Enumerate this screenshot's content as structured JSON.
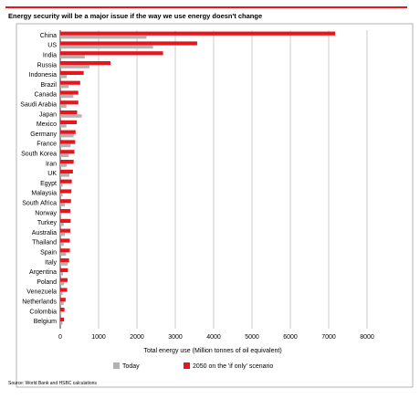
{
  "colors": {
    "title_bar": "#e8151c",
    "bar_2050": "#e8151c",
    "bar_today": "#b2b2b2",
    "grid": "#9a9a9a",
    "frame": "#808080"
  },
  "chart_data": {
    "type": "bar",
    "orientation": "horizontal",
    "title": "Energy security will be a major issue if the way we use energy doesn't change",
    "xlabel": "Total energy use (Million tonnes of oil equivalent)",
    "ylabel": "",
    "xlim": [
      0,
      8000
    ],
    "xticks": [
      0,
      1000,
      2000,
      3000,
      4000,
      5000,
      6000,
      7000,
      8000
    ],
    "grid": "vertical",
    "legend_position": "bottom",
    "categories": [
      "China",
      "US",
      "India",
      "Russia",
      "Indonesia",
      "Brazil",
      "Canada",
      "Saudi Arabia",
      "Japan",
      "Mexico",
      "Germany",
      "France",
      "South Korea",
      "Iran",
      "UK",
      "Egypt",
      "Malaysia",
      "South Africa",
      "Norway",
      "Turkey",
      "Australia",
      "Thailand",
      "Spain",
      "Italy",
      "Argentina",
      "Poland",
      "Venezuela",
      "Netherlands",
      "Colombia",
      "Belgium"
    ],
    "series": [
      {
        "name": "2050 on the 'if only' scenario",
        "color": "#e8151c",
        "values": [
          7170,
          3570,
          2680,
          1310,
          610,
          520,
          470,
          470,
          440,
          430,
          400,
          390,
          370,
          350,
          330,
          300,
          290,
          280,
          260,
          270,
          260,
          250,
          250,
          230,
          200,
          190,
          180,
          140,
          110,
          100
        ]
      },
      {
        "name": "Today",
        "color": "#b2b2b2",
        "values": [
          2250,
          2420,
          640,
          760,
          170,
          220,
          340,
          160,
          560,
          160,
          350,
          270,
          220,
          170,
          240,
          60,
          60,
          120,
          30,
          90,
          120,
          90,
          150,
          190,
          70,
          100,
          60,
          90,
          30,
          60
        ]
      }
    ]
  },
  "legend": {
    "today_label": "Today",
    "future_label": "2050 on the 'if only' scenario"
  },
  "footer": {
    "source": "Source: World Bank and HSBC calculations"
  }
}
